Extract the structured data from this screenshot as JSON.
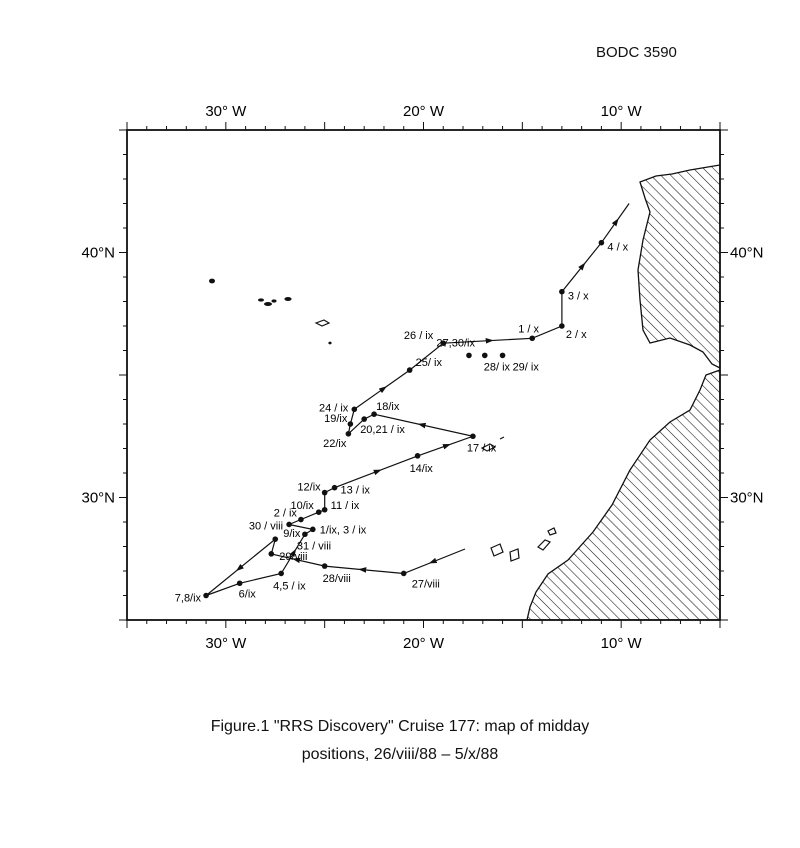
{
  "reference": "BODC 3590",
  "caption": {
    "line1": "Figure.1 \"RRS Discovery\" Cruise 177: map of midday",
    "line2": "positions,   26/viii/88 – 5/x/88"
  },
  "map": {
    "lon_range": [
      -35,
      -5
    ],
    "lat_range": [
      25,
      45
    ],
    "lon_labels": [
      {
        "lon": -30,
        "text": "30° W"
      },
      {
        "lon": -20,
        "text": "20° W"
      },
      {
        "lon": -10,
        "text": "10° W"
      }
    ],
    "lat_labels": [
      {
        "lat": 40,
        "text": "40°N"
      },
      {
        "lat": 30,
        "text": "30°N"
      }
    ],
    "land_color": "#111111",
    "track": [
      {
        "lat": 27.9,
        "lon": -17.9,
        "label": ""
      },
      {
        "lat": 26.9,
        "lon": -21.0,
        "label": "27/viii"
      },
      {
        "lat": 27.2,
        "lon": -25.0,
        "label": "28/viii"
      },
      {
        "lat": 27.7,
        "lon": -27.7,
        "label": "29/viii"
      },
      {
        "lat": 28.3,
        "lon": -27.5,
        "label": "9/ix"
      },
      {
        "lat": 26.0,
        "lon": -31.0,
        "label": "7,8/ix"
      },
      {
        "lat": 26.5,
        "lon": -29.3,
        "label": "6/ix"
      },
      {
        "lat": 26.9,
        "lon": -27.2,
        "label": "4,5 / ix"
      },
      {
        "lat": 28.5,
        "lon": -26.0,
        "label": "31 / viii"
      },
      {
        "lat": 28.7,
        "lon": -25.6,
        "label": "1/ix, 3 / ix"
      },
      {
        "lat": 28.9,
        "lon": -26.8,
        "label": "30 / viii"
      },
      {
        "lat": 29.1,
        "lon": -26.2,
        "label": "2 / ix"
      },
      {
        "lat": 29.4,
        "lon": -25.3,
        "label": "10/ix"
      },
      {
        "lat": 29.5,
        "lon": -25.0,
        "label": "11 / ix"
      },
      {
        "lat": 30.2,
        "lon": -25.0,
        "label": "12/ix"
      },
      {
        "lat": 30.4,
        "lon": -24.5,
        "label": "13 / ix"
      },
      {
        "lat": 31.7,
        "lon": -20.3,
        "label": "14/ix"
      },
      {
        "lat": 32.5,
        "lon": -17.5,
        "label": "17 / ix"
      },
      {
        "lat": 33.4,
        "lon": -22.5,
        "label": "18/ix"
      },
      {
        "lat": 33.2,
        "lon": -23.0,
        "label": "20,21 / ix"
      },
      {
        "lat": 32.6,
        "lon": -23.8,
        "label": "22/ix"
      },
      {
        "lat": 33.0,
        "lon": -23.7,
        "label": "19/ix"
      },
      {
        "lat": 33.6,
        "lon": -23.5,
        "label": "24 / ix"
      },
      {
        "lat": 35.2,
        "lon": -20.7,
        "label": "25/ ix"
      },
      {
        "lat": 36.3,
        "lon": -19.0,
        "label": "26 / ix"
      },
      {
        "lat": 36.5,
        "lon": -14.5,
        "label": "1 / x"
      },
      {
        "lat": 37.0,
        "lon": -13.0,
        "label": "2 / x"
      },
      {
        "lat": 38.4,
        "lon": -13.0,
        "label": "3 / x"
      },
      {
        "lat": 40.4,
        "lon": -11.0,
        "label": "4 / x"
      },
      {
        "lat": 42.0,
        "lon": -9.6,
        "label": ""
      }
    ],
    "off_track": [
      {
        "lat": 35.8,
        "lon": -17.7,
        "label": "27,30/ix"
      },
      {
        "lat": 35.8,
        "lon": -16.9,
        "label": "28/ ix"
      },
      {
        "lat": 35.8,
        "lon": -16.0,
        "label": "29/ ix"
      }
    ]
  }
}
